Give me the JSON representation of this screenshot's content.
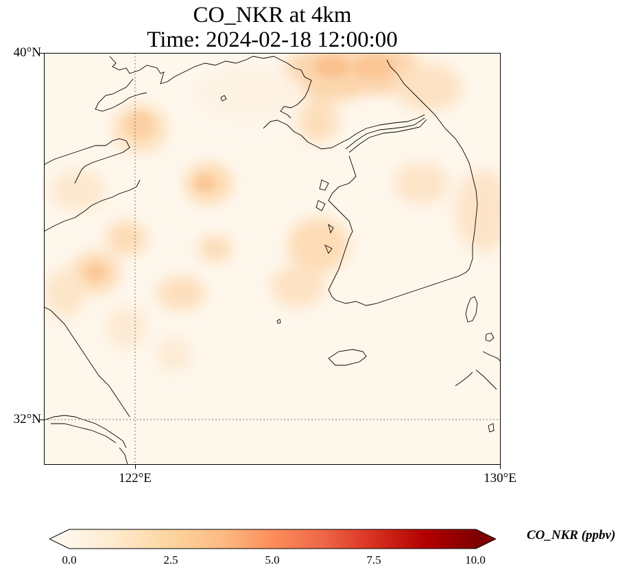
{
  "title": {
    "line1": "CO_NKR at 4km",
    "line2": "Time: 2024-02-18 12:00:00"
  },
  "map": {
    "lat_range": [
      31.1,
      40.0
    ],
    "lon_range": [
      120.0,
      130.0
    ],
    "yticks": [
      {
        "label": "40°N",
        "value": 40
      },
      {
        "label": "32°N",
        "value": 32
      }
    ],
    "xticks": [
      {
        "label": "122°E",
        "value": 122
      },
      {
        "label": "130°E",
        "value": 130
      }
    ],
    "gridlines": "dotted",
    "coastline_color": "#000000"
  },
  "colorbar": {
    "label": "CO_NKR (ppbv)",
    "ticks": [
      "0.0",
      "2.5",
      "5.0",
      "7.5",
      "10.0"
    ],
    "tick_values": [
      0,
      2.5,
      5.0,
      7.5,
      10.0
    ],
    "range": [
      0,
      10
    ],
    "extend": "both",
    "colors": [
      "#fff7ec",
      "#fee8c8",
      "#fdd49e",
      "#fdbb84",
      "#fc8d59",
      "#ef6548",
      "#d7301f",
      "#b30000",
      "#7f0000"
    ]
  }
}
